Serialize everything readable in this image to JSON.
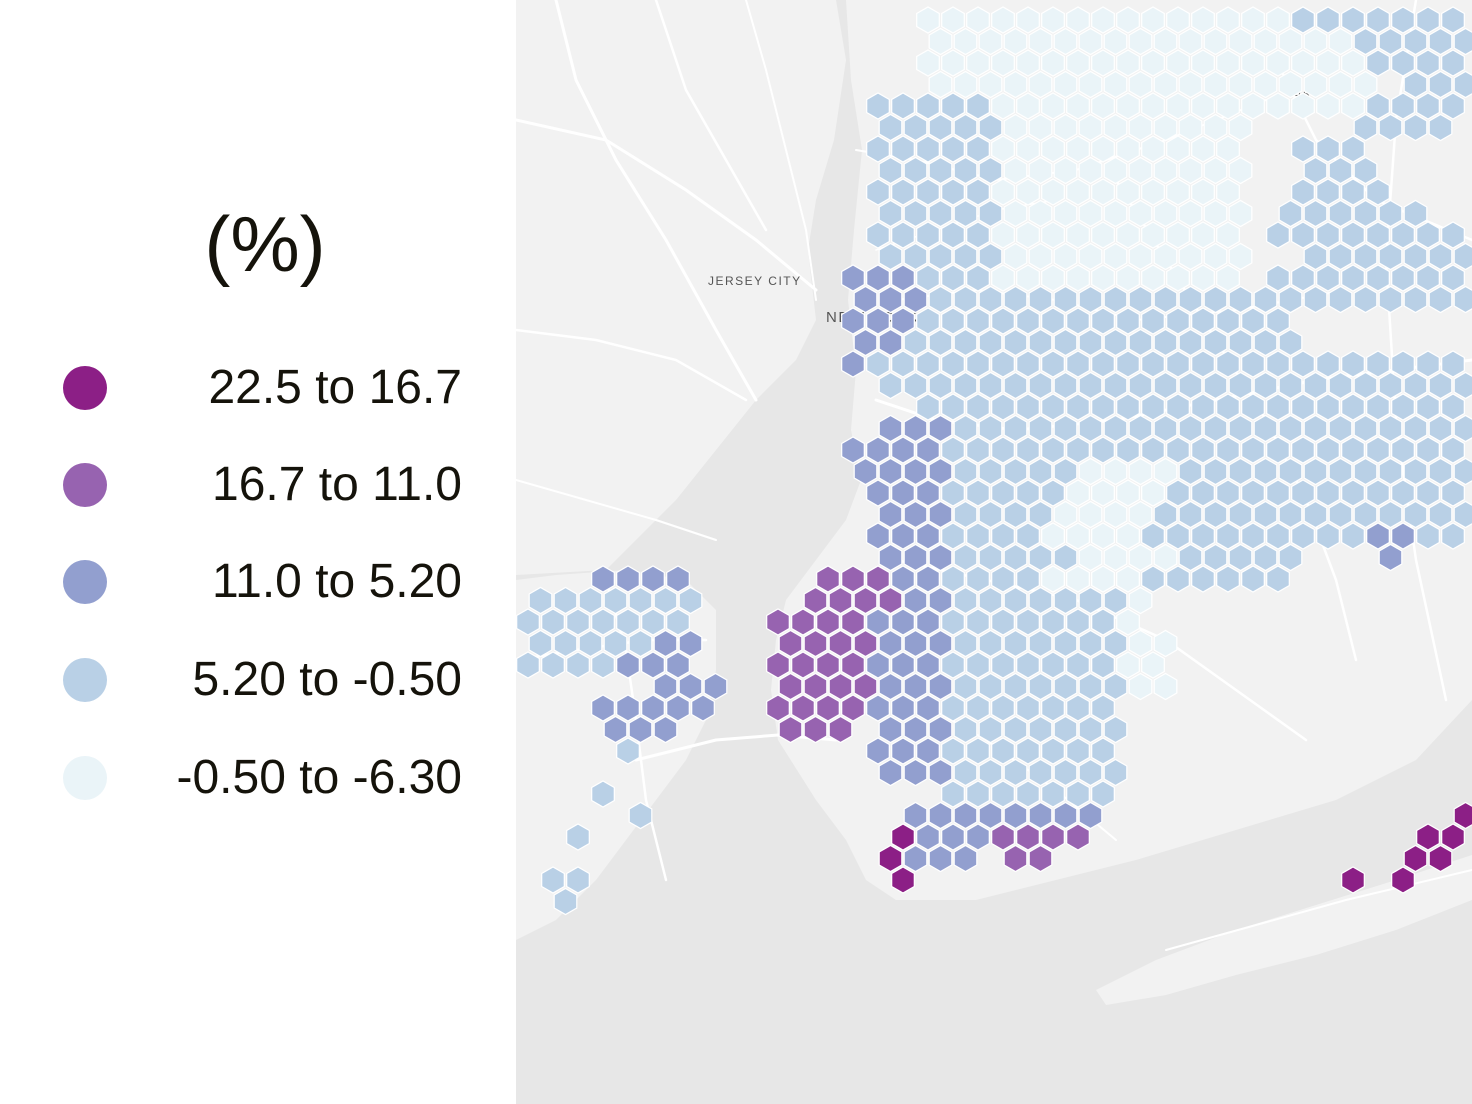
{
  "legend": {
    "title": "(%)",
    "items": [
      {
        "label": "22.5 to 16.7",
        "color": "#8c1f86"
      },
      {
        "label": "16.7 to 11.0",
        "color": "#9763b0"
      },
      {
        "label": "11.0 to 5.20",
        "color": "#929fcf"
      },
      {
        "label": "5.20 to -0.50",
        "color": "#b9d0e6"
      },
      {
        "label": "-0.50 to -6.30",
        "color": "#eaf4f8"
      }
    ]
  },
  "map": {
    "labels": {
      "jersey_city": "JERSEY CITY",
      "new_york": "NEW YORK",
      "lga": "LGA"
    },
    "colors": {
      "land": "#f2f2f2",
      "water": "#e7e7e7",
      "roads": "#ffffff",
      "hex_stroke": "#ffffff"
    }
  }
}
